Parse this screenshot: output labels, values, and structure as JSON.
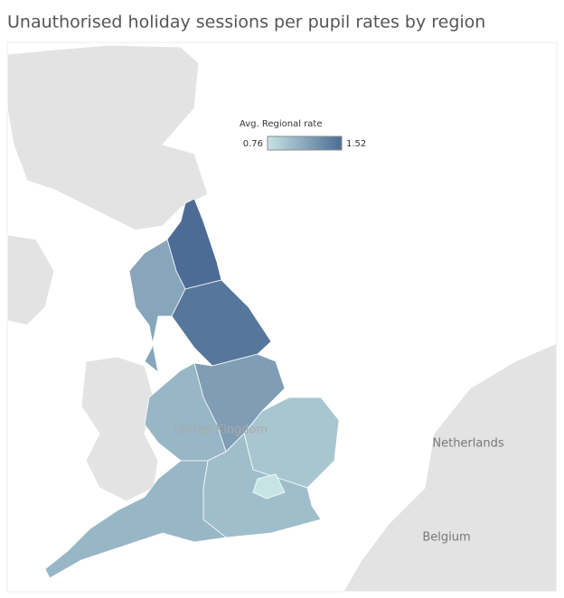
{
  "title": "Unauthorised holiday sessions per pupil rates by region",
  "legend": {
    "title": "Avg. Regional rate",
    "min": 0.76,
    "max": 1.52,
    "color_range": [
      "#c6e4e4",
      "#4c6b95"
    ]
  },
  "map_labels": [
    "United Kingdom",
    "Netherlands",
    "Belgium"
  ],
  "regions": [
    1.52,
    1.15,
    1.45,
    1.2,
    1.05,
    0.95,
    1.0,
    1.05,
    0.76
  ]
}
